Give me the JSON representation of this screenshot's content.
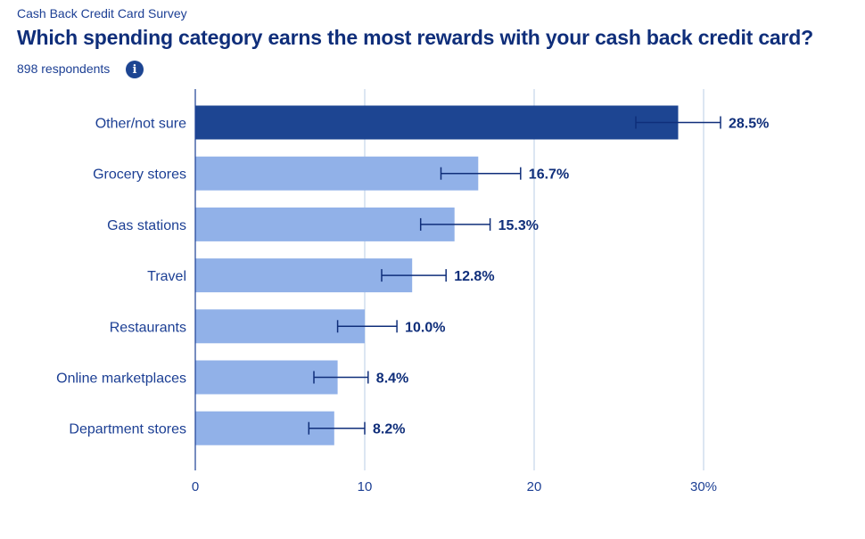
{
  "header": {
    "supertitle": "Cash Back Credit Card Survey",
    "title": "Which spending category earns the most rewards with your cash back credit card?",
    "respondents": "898 respondents",
    "info_icon": "info-icon"
  },
  "colors": {
    "highlight_bar": "#1d4592",
    "bar": "#91b1e8",
    "error_bar": "#0f2e7a",
    "gridline": "#b8cde6",
    "axis": "#1c3f94"
  },
  "chart_data": {
    "type": "bar",
    "orientation": "horizontal",
    "title": "Which spending category earns the most rewards with your cash back credit card?",
    "categories": [
      "Other/not sure",
      "Grocery stores",
      "Gas stations",
      "Travel",
      "Restaurants",
      "Online marketplaces",
      "Department stores"
    ],
    "values": [
      28.5,
      16.7,
      15.3,
      12.8,
      10.0,
      8.4,
      8.2
    ],
    "value_labels": [
      "28.5%",
      "16.7%",
      "15.3%",
      "12.8%",
      "10.0%",
      "8.4%",
      "8.2%"
    ],
    "error_low": [
      26.0,
      14.5,
      13.3,
      11.0,
      8.4,
      7.0,
      6.7
    ],
    "error_high": [
      31.0,
      19.2,
      17.4,
      14.8,
      11.9,
      10.2,
      10.0
    ],
    "highlight_index": 0,
    "xlim": [
      0,
      30
    ],
    "xticks": [
      0,
      10,
      20,
      30
    ],
    "xtick_labels": [
      "0",
      "10",
      "20",
      "30%"
    ],
    "grid": true,
    "xlabel": "",
    "ylabel": ""
  }
}
